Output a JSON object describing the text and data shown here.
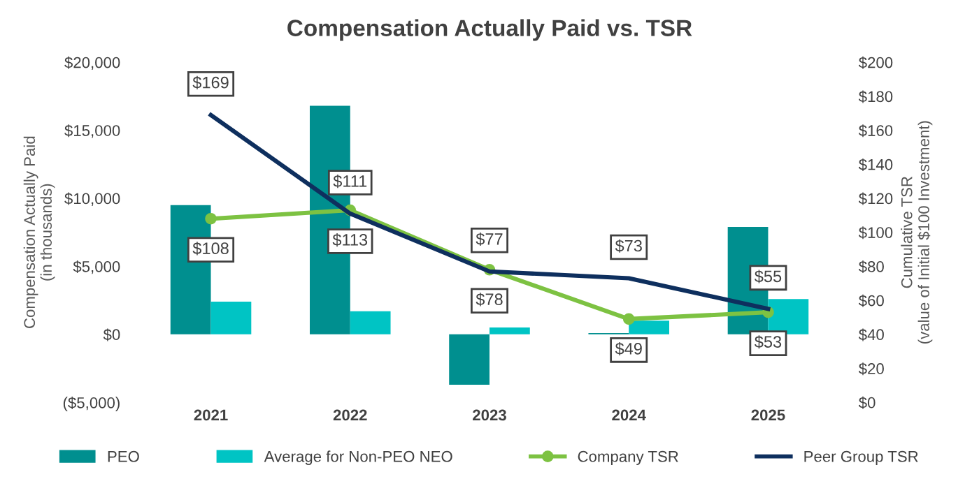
{
  "chart_data": {
    "type": "bar",
    "title": "Compensation Actually Paid vs. TSR",
    "ylabel": "Compensation Actually Paid\n(in thousands)",
    "y2label": "Cumulative TSR\n(value of Initial $100 Investment)",
    "categories": [
      "2021",
      "2022",
      "2023",
      "2024",
      "2025"
    ],
    "series": [
      {
        "name": "PEO",
        "color": "#008f8f",
        "values": [
          9500,
          16800,
          -3700,
          100,
          7900
        ]
      },
      {
        "name": "Average for Non-PEO NEO",
        "color": "#00c4c4",
        "values": [
          2400,
          1700,
          500,
          1000,
          2600
        ]
      },
      {
        "name": "Company TSR",
        "type": "line",
        "axis": "y2",
        "color": "#7dc242",
        "marker": "circle",
        "data_labels": true,
        "values": [
          108,
          113,
          78,
          49,
          53
        ],
        "value_labels": [
          "$108",
          "$113",
          "$78",
          "$49",
          "$53"
        ]
      },
      {
        "name": "Peer Group TSR",
        "type": "line",
        "axis": "y2",
        "color": "#0e2f5e",
        "marker": "none",
        "data_labels": true,
        "values": [
          169,
          111,
          77,
          73,
          55
        ],
        "value_labels": [
          "$169",
          "$111",
          "$77",
          "$73",
          "$55"
        ]
      }
    ],
    "ylim": [
      -5000,
      20000
    ],
    "yticks": [
      {
        "value": -5000,
        "label": "($5,000)"
      },
      {
        "value": 0,
        "label": "$0"
      },
      {
        "value": 5000,
        "label": "$5,000"
      },
      {
        "value": 10000,
        "label": "$10,000"
      },
      {
        "value": 15000,
        "label": "$15,000"
      },
      {
        "value": 20000,
        "label": "$20,000"
      }
    ],
    "y2lim": [
      0,
      200
    ],
    "y2ticks": [
      {
        "value": 0,
        "label": "$0"
      },
      {
        "value": 20,
        "label": "$20"
      },
      {
        "value": 40,
        "label": "$40"
      },
      {
        "value": 60,
        "label": "$60"
      },
      {
        "value": 80,
        "label": "$80"
      },
      {
        "value": 100,
        "label": "$100"
      },
      {
        "value": 120,
        "label": "$120"
      },
      {
        "value": 140,
        "label": "$140"
      },
      {
        "value": 160,
        "label": "$160"
      },
      {
        "value": 180,
        "label": "$180"
      },
      {
        "value": 200,
        "label": "$200"
      }
    ],
    "grid": false,
    "legend": "bottom"
  }
}
